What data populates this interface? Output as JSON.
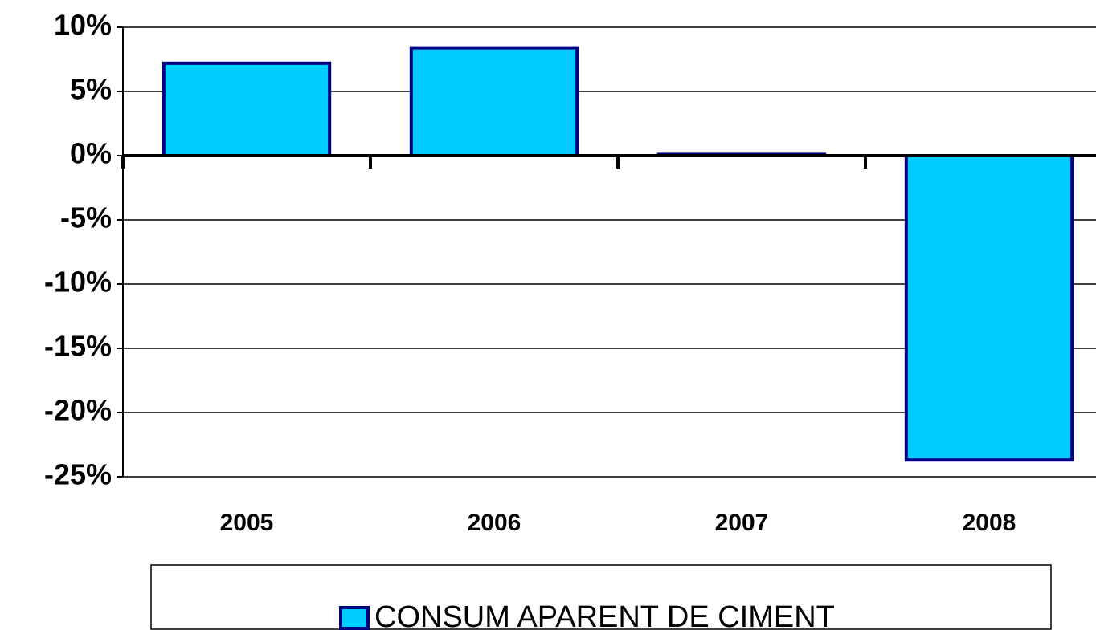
{
  "chart_data": {
    "type": "bar",
    "categories": [
      "2005",
      "2006",
      "2007",
      "2008"
    ],
    "series": [
      {
        "name": "CONSUM APARENT DE CIMENT",
        "color": "#00ccff",
        "values": [
          7.2,
          8.4,
          0.1,
          -23.7
        ]
      }
    ],
    "ylim": [
      -25,
      10
    ],
    "yticks": [
      {
        "value": -25,
        "label": "-25%"
      },
      {
        "value": -20,
        "label": "-20%"
      },
      {
        "value": -15,
        "label": "-15%"
      },
      {
        "value": -10,
        "label": "-10%"
      },
      {
        "value": -5,
        "label": "-5%"
      },
      {
        "value": 0,
        "label": "0%"
      },
      {
        "value": 5,
        "label": "5%"
      },
      {
        "value": 10,
        "label": "10%"
      }
    ],
    "grid": true,
    "legend": "bottom"
  }
}
